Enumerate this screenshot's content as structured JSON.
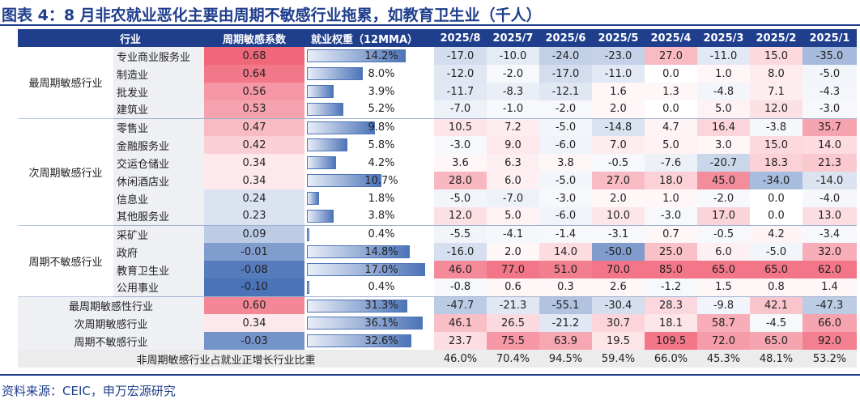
{
  "title": "图表 4：8 月非农就业恶化主要由周期不敏感行业拖累，如教育卫生业（千人）",
  "source": "资料来源：CEIC，申万宏源研究",
  "headers": {
    "industry": "行业",
    "sensitivity": "周期敏感系数",
    "weight": "就业权重（12MMA）",
    "months": [
      "2025/8",
      "2025/7",
      "2025/6",
      "2025/5",
      "2025/4",
      "2025/3",
      "2025/2",
      "2025/1"
    ]
  },
  "groups": [
    {
      "name": "最周期敏感行业",
      "rows": [
        {
          "industry": "专业商业服务业",
          "coef": "0.68",
          "coef_num": 0.68,
          "weight": "14.2%",
          "weight_num": 14.2,
          "values": [
            "-17.0",
            "-10.0",
            "-24.0",
            "-23.0",
            "27.0",
            "-11.0",
            "15.0",
            "-35.0"
          ]
        },
        {
          "industry": "制造业",
          "coef": "0.64",
          "coef_num": 0.64,
          "weight": "8.0%",
          "weight_num": 8.0,
          "values": [
            "-12.0",
            "-2.0",
            "-17.0",
            "-11.0",
            "0.0",
            "1.0",
            "8.0",
            "-5.0"
          ]
        },
        {
          "industry": "批发业",
          "coef": "0.56",
          "coef_num": 0.56,
          "weight": "3.9%",
          "weight_num": 3.9,
          "values": [
            "-11.7",
            "-8.3",
            "-12.1",
            "1.6",
            "1.3",
            "-4.8",
            "7.1",
            "-4.3"
          ]
        },
        {
          "industry": "建筑业",
          "coef": "0.53",
          "coef_num": 0.53,
          "weight": "5.2%",
          "weight_num": 5.2,
          "values": [
            "-7.0",
            "-1.0",
            "-2.0",
            "2.0",
            "0.0",
            "5.0",
            "12.0",
            "-3.0"
          ]
        }
      ]
    },
    {
      "name": "次周期敏感行业",
      "rows": [
        {
          "industry": "零售业",
          "coef": "0.47",
          "coef_num": 0.47,
          "weight": "9.8%",
          "weight_num": 9.8,
          "values": [
            "10.5",
            "7.2",
            "-5.0",
            "-14.8",
            "4.7",
            "16.4",
            "-3.8",
            "35.7"
          ]
        },
        {
          "industry": "金融服务业",
          "coef": "0.42",
          "coef_num": 0.42,
          "weight": "5.8%",
          "weight_num": 5.8,
          "values": [
            "-3.0",
            "9.0",
            "-6.0",
            "7.0",
            "5.0",
            "3.0",
            "15.0",
            "14.0"
          ]
        },
        {
          "industry": "交运仓储业",
          "coef": "0.34",
          "coef_num": 0.34,
          "weight": "4.2%",
          "weight_num": 4.2,
          "values": [
            "3.6",
            "6.3",
            "3.8",
            "-0.5",
            "-7.6",
            "-20.7",
            "18.3",
            "21.3"
          ]
        },
        {
          "industry": "休闲酒店业",
          "coef": "0.34",
          "coef_num": 0.34,
          "weight": "10.7%",
          "weight_num": 10.7,
          "values": [
            "28.0",
            "6.0",
            "-5.0",
            "27.0",
            "18.0",
            "45.0",
            "-34.0",
            "-14.0"
          ]
        },
        {
          "industry": "信息业",
          "coef": "0.24",
          "coef_num": 0.24,
          "weight": "1.8%",
          "weight_num": 1.8,
          "values": [
            "-5.0",
            "-7.0",
            "-3.0",
            "2.0",
            "1.0",
            "-2.0",
            "0.0",
            "-4.0"
          ]
        },
        {
          "industry": "其他服务业",
          "coef": "0.23",
          "coef_num": 0.23,
          "weight": "3.8%",
          "weight_num": 3.8,
          "values": [
            "12.0",
            "5.0",
            "-6.0",
            "10.0",
            "-3.0",
            "17.0",
            "0.0",
            "13.0"
          ]
        }
      ]
    },
    {
      "name": "周期不敏感行业",
      "rows": [
        {
          "industry": "采矿业",
          "coef": "0.09",
          "coef_num": 0.09,
          "weight": "0.4%",
          "weight_num": 0.4,
          "values": [
            "-5.5",
            "-4.1",
            "-1.4",
            "-3.1",
            "0.7",
            "-0.5",
            "4.2",
            "-3.4"
          ]
        },
        {
          "industry": "政府",
          "coef": "-0.01",
          "coef_num": -0.01,
          "weight": "14.8%",
          "weight_num": 14.8,
          "values": [
            "-16.0",
            "2.0",
            "14.0",
            "-50.0",
            "25.0",
            "6.0",
            "-5.0",
            "32.0"
          ]
        },
        {
          "industry": "教育卫生业",
          "coef": "-0.08",
          "coef_num": -0.08,
          "weight": "17.0%",
          "weight_num": 17.0,
          "values": [
            "46.0",
            "77.0",
            "51.0",
            "70.0",
            "85.0",
            "65.0",
            "65.0",
            "62.0"
          ]
        },
        {
          "industry": "公用事业",
          "coef": "-0.10",
          "coef_num": -0.1,
          "weight": "0.4%",
          "weight_num": 0.4,
          "values": [
            "-0.8",
            "0.6",
            "0.3",
            "2.6",
            "-1.2",
            "1.5",
            "0.8",
            "1.4"
          ]
        }
      ]
    }
  ],
  "aggregates": [
    {
      "label": "最周期敏感性行业",
      "coef": "0.60",
      "coef_num": 0.6,
      "weight": "31.3%",
      "weight_num": 31.3,
      "values": [
        "-47.7",
        "-21.3",
        "-55.1",
        "-30.4",
        "28.3",
        "-9.8",
        "42.1",
        "-47.3"
      ]
    },
    {
      "label": "次周期敏感行业",
      "coef": "0.34",
      "coef_num": 0.34,
      "weight": "36.1%",
      "weight_num": 36.1,
      "values": [
        "46.1",
        "26.5",
        "-21.2",
        "30.7",
        "18.1",
        "58.7",
        "-4.5",
        "66.0"
      ]
    },
    {
      "label": "周期不敏感行业",
      "coef": "-0.03",
      "coef_num": -0.03,
      "weight": "32.6%",
      "weight_num": 32.6,
      "values": [
        "23.7",
        "75.5",
        "63.9",
        "19.5",
        "109.5",
        "72.0",
        "65.0",
        "92.0"
      ]
    }
  ],
  "footer": {
    "label": "非周期敏感行业占就业正增长行业比重",
    "values": [
      "46.0%",
      "70.4%",
      "94.5%",
      "59.4%",
      "66.0%",
      "45.3%",
      "48.1%",
      "53.2%"
    ]
  },
  "colors": {
    "header_bg": "#1f3e8c",
    "title": "#1f3e8c",
    "positive": "#f0677a",
    "negative": "#4a73b8",
    "bar": "#4d74b8",
    "footer_bg": "#ececec"
  }
}
